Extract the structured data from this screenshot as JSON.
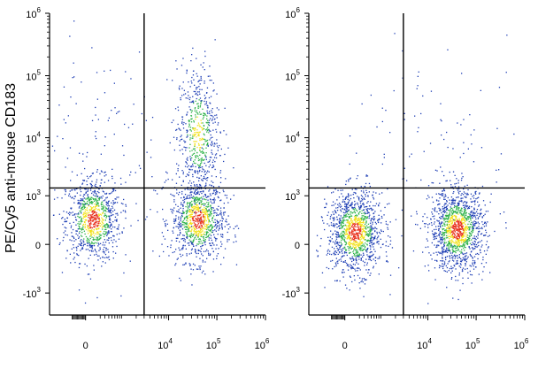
{
  "chart_data": [
    {
      "type": "scatter",
      "subtype": "flow-cytometry-density-plot",
      "title": "",
      "xlabel": "",
      "ylabel": "PE/Cy5 anti-mouse CD183",
      "x_scale": "biexponential",
      "y_scale": "biexponential",
      "x_ticks": [
        {
          "value": 0,
          "base": "0",
          "exp": ""
        },
        {
          "value": 10000,
          "base": "10",
          "exp": "4"
        },
        {
          "value": 100000,
          "base": "10",
          "exp": "5"
        },
        {
          "value": 1000000,
          "base": "10",
          "exp": "6"
        }
      ],
      "y_ticks": [
        {
          "value": -1000,
          "base": "-10",
          "exp": "3"
        },
        {
          "value": 0,
          "base": "0",
          "exp": ""
        },
        {
          "value": 1000,
          "base": "10",
          "exp": "3"
        },
        {
          "value": 10000,
          "base": "10",
          "exp": "4"
        },
        {
          "value": 100000,
          "base": "10",
          "exp": "5"
        },
        {
          "value": 1000000,
          "base": "10",
          "exp": "6"
        }
      ],
      "gate": {
        "x": 3000,
        "y": 1400
      },
      "populations": [
        {
          "x_center": 80,
          "y_center": 300,
          "spread": "compact",
          "share": 0.34
        },
        {
          "x_center": 40000,
          "y_center": 300,
          "spread": "compact",
          "share": 0.38
        },
        {
          "x_center": 40000,
          "y_center": 12000,
          "spread": "broad",
          "share": 0.22
        },
        {
          "x_center": 80,
          "y_center": 8000,
          "spread": "sparse",
          "share": 0.06
        }
      ]
    },
    {
      "type": "scatter",
      "subtype": "flow-cytometry-density-plot",
      "title": "",
      "xlabel": "",
      "ylabel": "",
      "x_scale": "biexponential",
      "y_scale": "biexponential",
      "x_ticks": [
        {
          "value": 0,
          "base": "0",
          "exp": ""
        },
        {
          "value": 10000,
          "base": "10",
          "exp": "4"
        },
        {
          "value": 100000,
          "base": "10",
          "exp": "5"
        },
        {
          "value": 1000000,
          "base": "10",
          "exp": "6"
        }
      ],
      "y_ticks": [
        {
          "value": -1000,
          "base": "-10",
          "exp": "3"
        },
        {
          "value": 0,
          "base": "0",
          "exp": ""
        },
        {
          "value": 1000,
          "base": "10",
          "exp": "3"
        },
        {
          "value": 10000,
          "base": "10",
          "exp": "4"
        },
        {
          "value": 100000,
          "base": "10",
          "exp": "5"
        },
        {
          "value": 1000000,
          "base": "10",
          "exp": "6"
        }
      ],
      "gate": {
        "x": 3000,
        "y": 1400
      },
      "populations": [
        {
          "x_center": 120,
          "y_center": 120,
          "spread": "compact",
          "share": 0.46
        },
        {
          "x_center": 40000,
          "y_center": 150,
          "spread": "compact",
          "share": 0.5
        },
        {
          "x_center": 20000,
          "y_center": 5000,
          "spread": "sparse",
          "share": 0.04
        }
      ]
    }
  ],
  "colors": {
    "density_low": "#1f3fb5",
    "density_mid": "#2fb34a",
    "density_high": "#f2e21a",
    "density_peak": "#e8301c",
    "axis": "#000000"
  }
}
